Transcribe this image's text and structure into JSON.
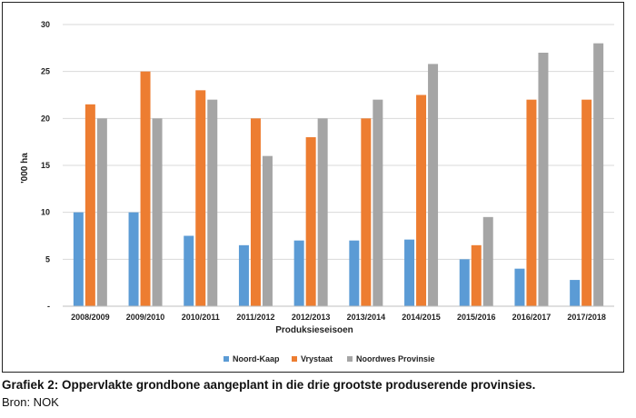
{
  "caption": {
    "title": "Grafiek 2: Oppervlakte grondbone aangeplant in die drie grootste produserende provinsies.",
    "source": "Bron: NOK"
  },
  "colors": {
    "Noord-Kaap": "#5b9bd5",
    "Vrystaat": "#ed7d31",
    "Noordwes Provinsie": "#a5a5a5",
    "gridline": "#d9d9d9",
    "axis": "#bfbfbf"
  },
  "chart_data": {
    "type": "bar",
    "ylabel": "'000 ha",
    "xlabel": "Produksieseisoen",
    "ylim": [
      0,
      30
    ],
    "yticks": [
      {
        "value": 0,
        "label": "-"
      },
      {
        "value": 5,
        "label": "5"
      },
      {
        "value": 10,
        "label": "10"
      },
      {
        "value": 15,
        "label": "15"
      },
      {
        "value": 20,
        "label": "20"
      },
      {
        "value": 25,
        "label": "25"
      },
      {
        "value": 30,
        "label": "30"
      }
    ],
    "grid": true,
    "legend_position": "bottom",
    "categories": [
      "2008/2009",
      "2009/2010",
      "2010/2011",
      "2011/2012",
      "2012/2013",
      "2013/2014",
      "2014/2015",
      "2015/2016",
      "2016/2017",
      "2017/2018"
    ],
    "series": [
      {
        "name": "Noord-Kaap",
        "values": [
          10,
          10,
          7.5,
          6.5,
          7,
          7,
          7.1,
          5,
          4,
          2.8
        ]
      },
      {
        "name": "Vrystaat",
        "values": [
          21.5,
          25,
          23,
          20,
          18,
          20,
          22.5,
          6.5,
          22,
          22
        ]
      },
      {
        "name": "Noordwes Provinsie",
        "values": [
          20,
          20,
          22,
          16,
          20,
          22,
          25.8,
          9.5,
          27,
          28
        ]
      }
    ]
  }
}
